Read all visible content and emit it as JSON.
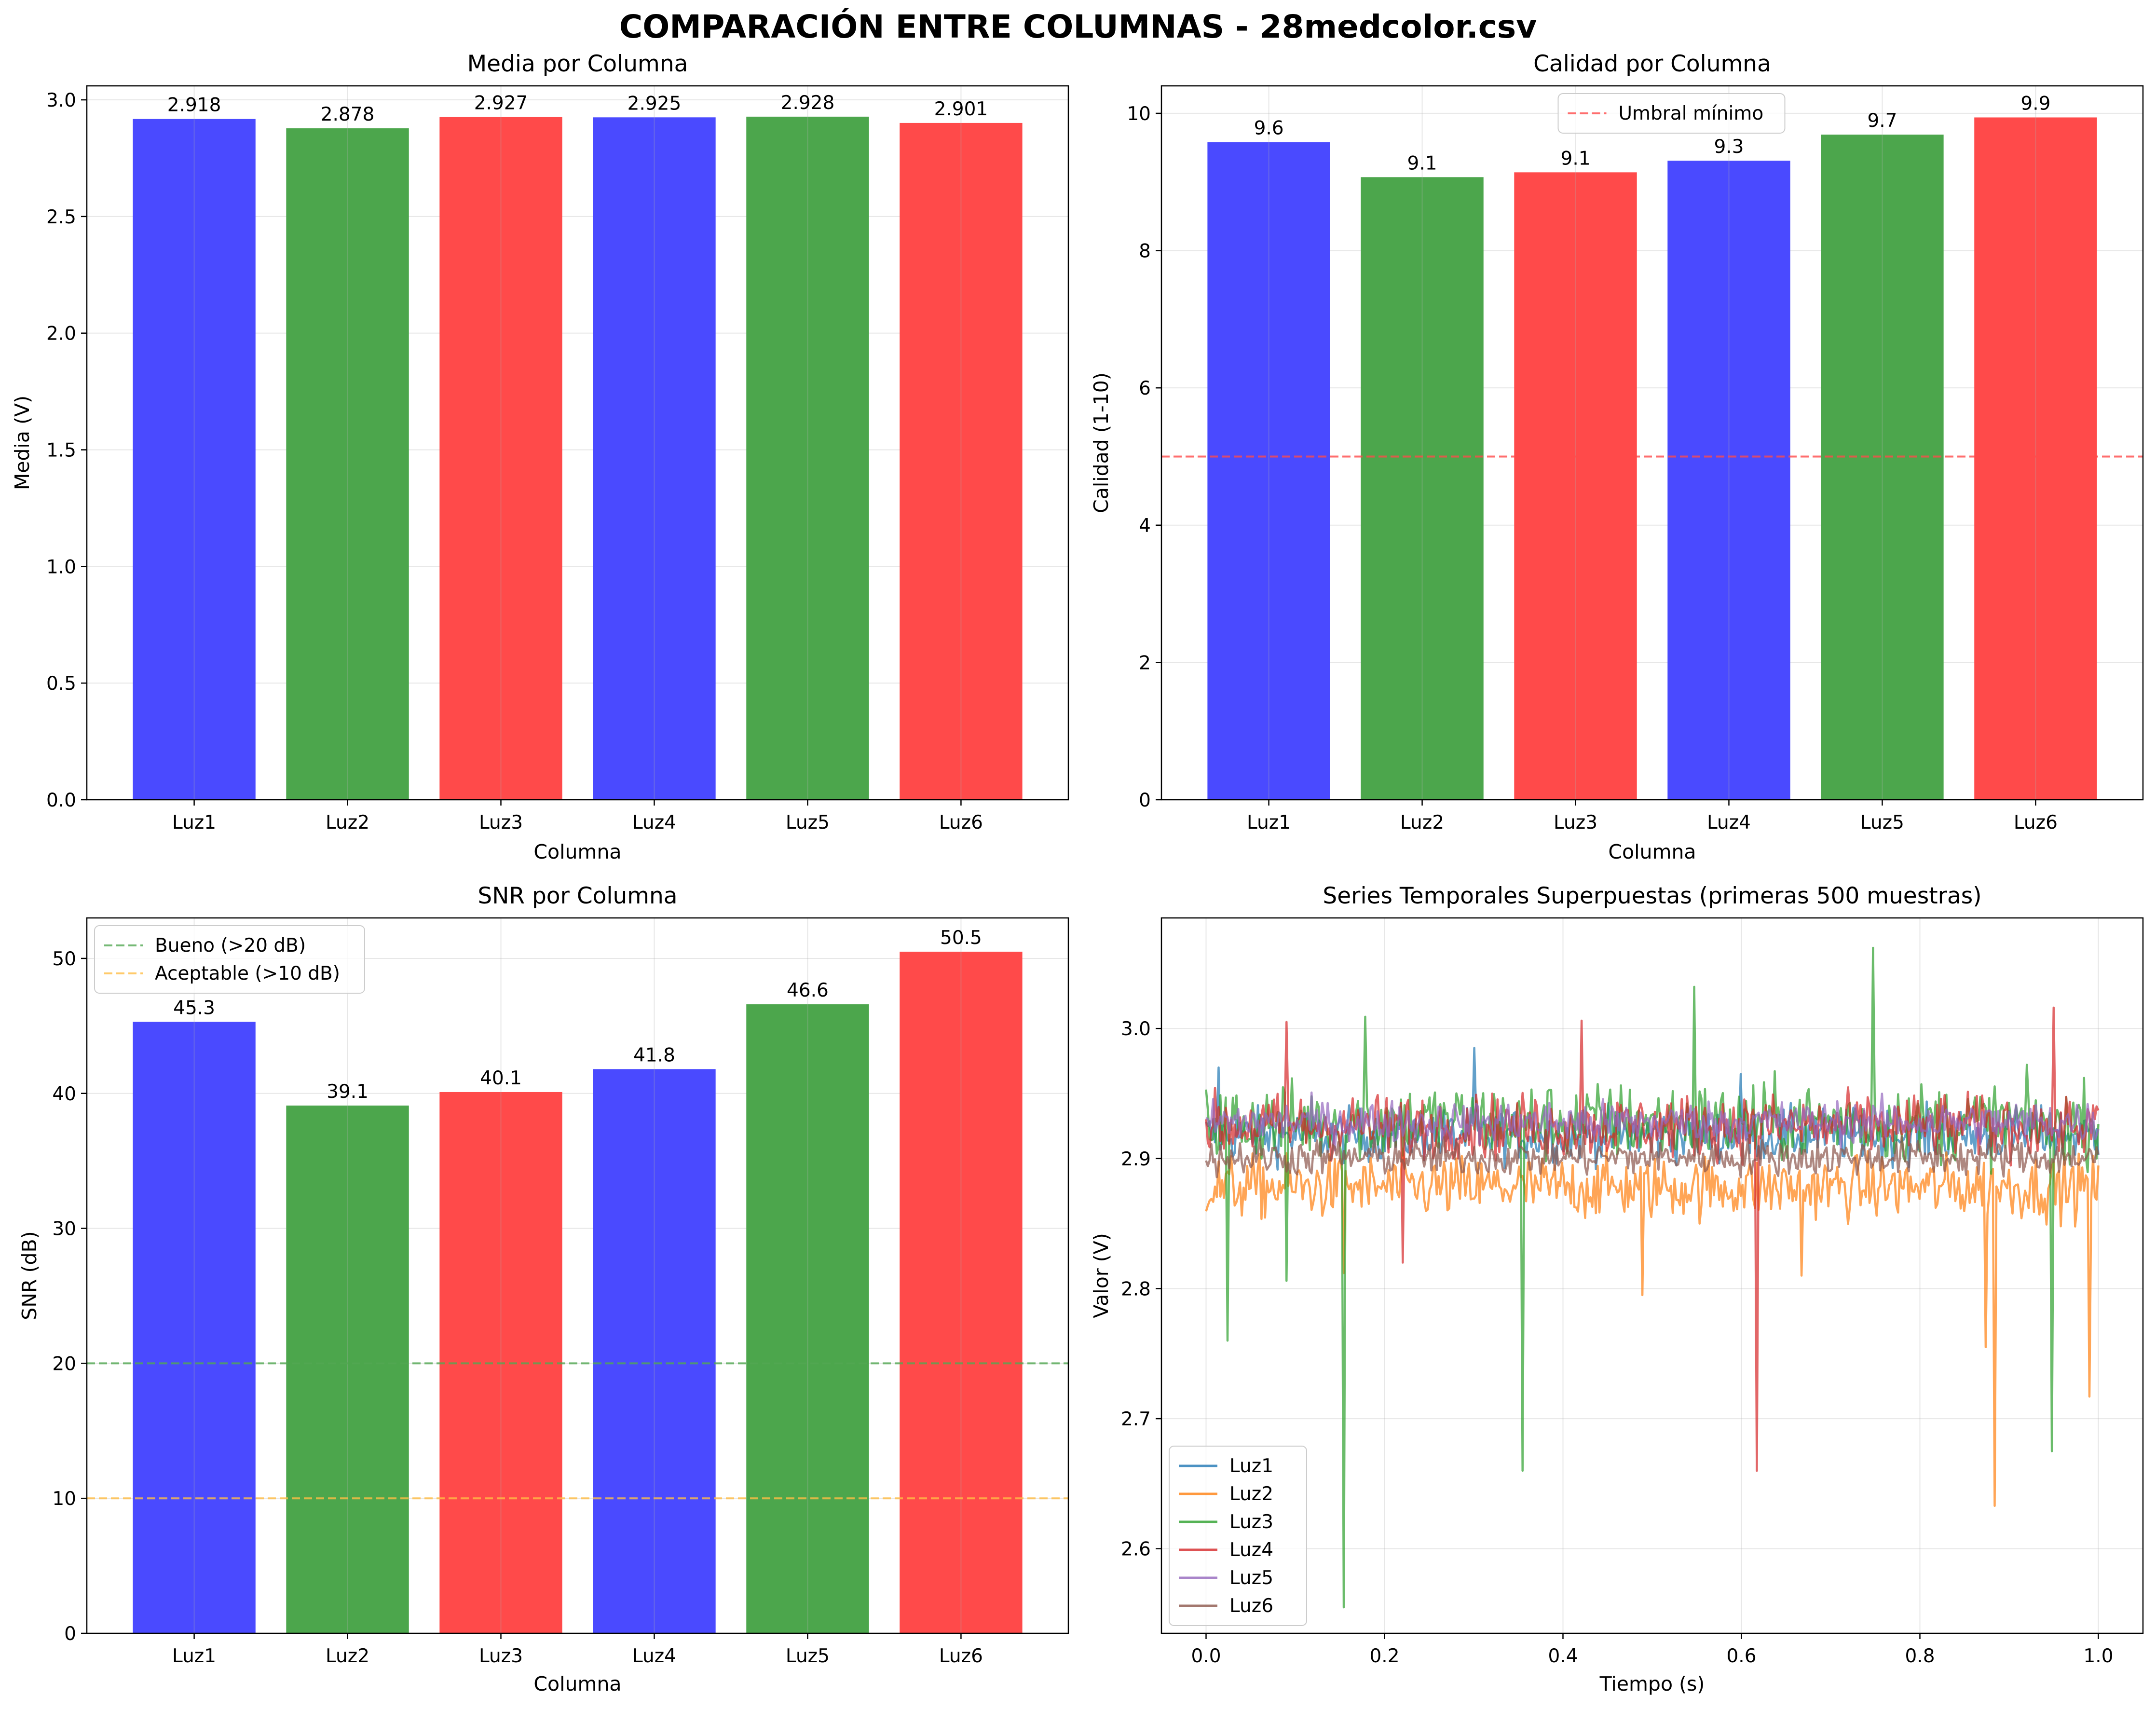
{
  "figure": {
    "title": "COMPARACIÓN ENTRE COLUMNAS - 28medcolor.csv"
  },
  "chart_data": [
    {
      "type": "bar",
      "title": "Media por Columna",
      "xlabel": "Columna",
      "ylabel": "Media (V)",
      "categories": [
        "Luz1",
        "Luz2",
        "Luz3",
        "Luz4",
        "Luz5",
        "Luz6"
      ],
      "values": [
        2.918,
        2.878,
        2.927,
        2.925,
        2.928,
        2.901
      ],
      "value_labels": [
        "2.918",
        "2.878",
        "2.927",
        "2.925",
        "2.928",
        "2.901"
      ],
      "bar_colors": [
        "#4a4aff",
        "#4ca64c",
        "#ff4a4a",
        "#4a4aff",
        "#4ca64c",
        "#ff4a4a"
      ],
      "ylim": [
        0,
        3.06
      ],
      "yticks": [
        0.0,
        0.5,
        1.0,
        1.5,
        2.0,
        2.5,
        3.0
      ],
      "ytick_labels": [
        "0.0",
        "0.5",
        "1.0",
        "1.5",
        "2.0",
        "2.5",
        "3.0"
      ],
      "grid": true
    },
    {
      "type": "bar",
      "title": "Calidad por Columna",
      "xlabel": "Columna",
      "ylabel": "Calidad (1-10)",
      "categories": [
        "Luz1",
        "Luz2",
        "Luz3",
        "Luz4",
        "Luz5",
        "Luz6"
      ],
      "values": [
        9.58,
        9.07,
        9.14,
        9.31,
        9.69,
        9.94
      ],
      "value_labels": [
        "9.6",
        "9.1",
        "9.1",
        "9.3",
        "9.7",
        "9.9"
      ],
      "bar_colors": [
        "#4a4aff",
        "#4ca64c",
        "#ff4a4a",
        "#4a4aff",
        "#4ca64c",
        "#ff4a4a"
      ],
      "ylim": [
        0,
        10.4
      ],
      "yticks": [
        0,
        2,
        4,
        6,
        8,
        10
      ],
      "ytick_labels": [
        "0",
        "2",
        "4",
        "6",
        "8",
        "10"
      ],
      "grid": true,
      "reference_lines": [
        {
          "y": 5,
          "label": "Umbral mínimo",
          "color": "#ff4a4a"
        }
      ],
      "legend": "upper-center"
    },
    {
      "type": "bar",
      "title": "SNR por Columna",
      "xlabel": "Columna",
      "ylabel": "SNR (dB)",
      "categories": [
        "Luz1",
        "Luz2",
        "Luz3",
        "Luz4",
        "Luz5",
        "Luz6"
      ],
      "values": [
        45.3,
        39.1,
        40.1,
        41.8,
        46.6,
        50.5
      ],
      "value_labels": [
        "45.3",
        "39.1",
        "40.1",
        "41.8",
        "46.6",
        "50.5"
      ],
      "bar_colors": [
        "#4a4aff",
        "#4ca64c",
        "#ff4a4a",
        "#4a4aff",
        "#4ca64c",
        "#ff4a4a"
      ],
      "ylim": [
        0,
        53
      ],
      "yticks": [
        0,
        10,
        20,
        30,
        40,
        50
      ],
      "ytick_labels": [
        "0",
        "10",
        "20",
        "30",
        "40",
        "50"
      ],
      "grid": true,
      "reference_lines": [
        {
          "y": 20,
          "label": "Bueno (>20 dB)",
          "color": "#52a852"
        },
        {
          "y": 10,
          "label": "Aceptable (>10 dB)",
          "color": "#ffbd45"
        }
      ],
      "legend": "upper-left"
    },
    {
      "type": "line",
      "title": "Series Temporales Superpuestas (primeras 500 muestras)",
      "xlabel": "Tiempo (s)",
      "ylabel": "Valor (V)",
      "xlim": [
        -0.05,
        1.05
      ],
      "ylim": [
        2.535,
        3.085
      ],
      "xticks": [
        0.0,
        0.2,
        0.4,
        0.6,
        0.8,
        1.0
      ],
      "xtick_labels": [
        "0.0",
        "0.2",
        "0.4",
        "0.6",
        "0.8",
        "1.0"
      ],
      "yticks": [
        2.6,
        2.7,
        2.8,
        2.9,
        3.0
      ],
      "ytick_labels": [
        "2.6",
        "2.7",
        "2.8",
        "2.9",
        "3.0"
      ],
      "grid": true,
      "legend": "lower-left",
      "samples": 500,
      "time_range": [
        0,
        1
      ],
      "series": [
        {
          "name": "Luz1",
          "color": "#1f77b4",
          "mean": 2.918,
          "noise": 0.01,
          "spikes": [
            {
              "x": 0.3,
              "y": 2.985
            },
            {
              "x": 0.015,
              "y": 2.97
            },
            {
              "x": 0.6,
              "y": 2.965
            }
          ]
        },
        {
          "name": "Luz2",
          "color": "#ff7f0e",
          "mean": 2.878,
          "noise": 0.012,
          "spikes": [
            {
              "x": 0.883,
              "y": 2.633
            },
            {
              "x": 0.99,
              "y": 2.717
            },
            {
              "x": 0.873,
              "y": 2.755
            },
            {
              "x": 0.488,
              "y": 2.795
            },
            {
              "x": 0.155,
              "y": 2.812
            },
            {
              "x": 0.668,
              "y": 2.81
            }
          ]
        },
        {
          "name": "Luz3",
          "color": "#2ca02c",
          "mean": 2.928,
          "noise": 0.015,
          "spikes": [
            {
              "x": 0.155,
              "y": 2.555
            },
            {
              "x": 0.355,
              "y": 2.66
            },
            {
              "x": 0.025,
              "y": 2.76
            },
            {
              "x": 0.948,
              "y": 2.675
            },
            {
              "x": 0.748,
              "y": 3.062
            },
            {
              "x": 0.548,
              "y": 3.032
            },
            {
              "x": 0.178,
              "y": 3.009
            },
            {
              "x": 0.09,
              "y": 2.806
            }
          ]
        },
        {
          "name": "Luz4",
          "color": "#d62728",
          "mean": 2.925,
          "noise": 0.012,
          "spikes": [
            {
              "x": 0.618,
              "y": 2.66
            },
            {
              "x": 0.09,
              "y": 3.005
            },
            {
              "x": 0.42,
              "y": 3.006
            },
            {
              "x": 0.95,
              "y": 3.016
            },
            {
              "x": 0.22,
              "y": 2.82
            }
          ]
        },
        {
          "name": "Luz5",
          "color": "#9467bd",
          "mean": 2.928,
          "noise": 0.008,
          "spikes": []
        },
        {
          "name": "Luz6",
          "color": "#8c564b",
          "mean": 2.901,
          "noise": 0.007,
          "spikes": []
        }
      ]
    }
  ]
}
